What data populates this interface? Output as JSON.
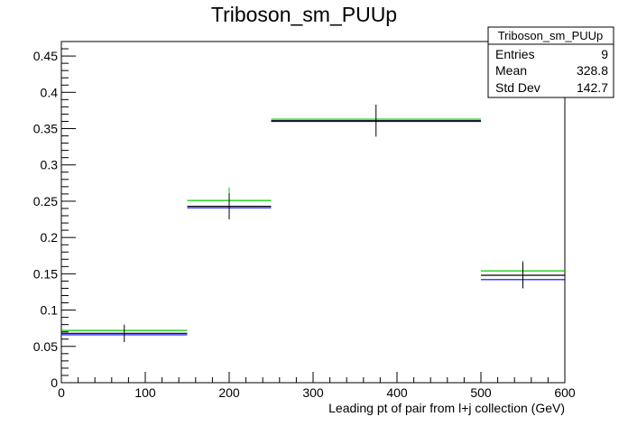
{
  "chart_data": {
    "type": "histogram",
    "title": "Triboson_sm_PUUp",
    "xlabel": "Leading pt of pair from l+j collection (GeV)",
    "ylabel": "",
    "xlim": [
      0,
      600
    ],
    "ylim": [
      0,
      0.47
    ],
    "x_ticks": [
      0,
      100,
      200,
      300,
      400,
      500,
      600
    ],
    "y_ticks": [
      0,
      0.05,
      0.1,
      0.15,
      0.2,
      0.25,
      0.3,
      0.35,
      0.4,
      0.45
    ],
    "bins": [
      {
        "low": 0,
        "high": 150,
        "center": 75
      },
      {
        "low": 150,
        "high": 250,
        "center": 200
      },
      {
        "low": 250,
        "high": 500,
        "center": 375
      },
      {
        "low": 500,
        "high": 600,
        "center": 550
      }
    ],
    "series": [
      {
        "color": "#000000",
        "values": [
          0.068,
          0.243,
          0.361,
          0.148
        ],
        "errors": [
          0.012,
          0.018,
          0.022,
          0.018
        ]
      },
      {
        "color": "#0000ff",
        "values": [
          0.066,
          0.241,
          0.36,
          0.142
        ]
      },
      {
        "color": "#00cc00",
        "values": [
          0.072,
          0.251,
          0.363,
          0.154
        ],
        "errors": [
          0.0,
          0.018,
          0.0,
          0.014
        ]
      }
    ],
    "grid": false
  },
  "stats_box": {
    "title": "Triboson_sm_PUUp",
    "rows": [
      {
        "label": "Entries",
        "value": "9"
      },
      {
        "label": "Mean",
        "value": "328.8"
      },
      {
        "label": "Std Dev",
        "value": "142.7"
      }
    ]
  }
}
